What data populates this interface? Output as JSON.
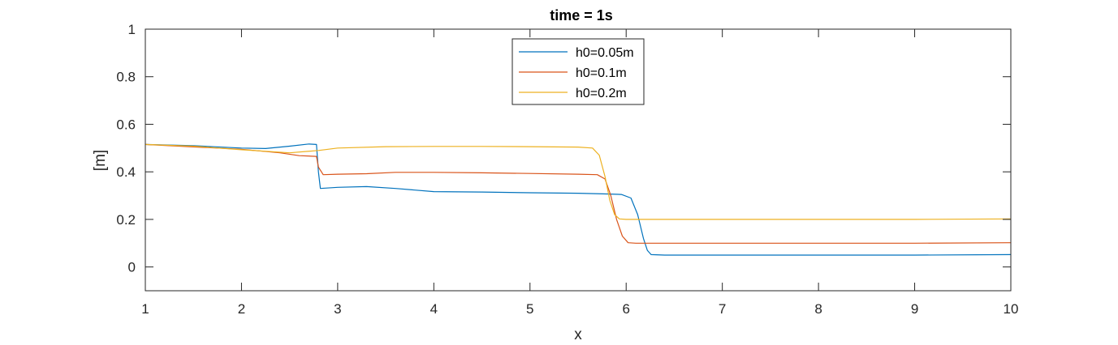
{
  "chart_data": {
    "type": "line",
    "title": "time = 1s",
    "xlabel": "x",
    "ylabel": "[m]",
    "xlim": [
      1,
      10
    ],
    "ylim": [
      -0.1,
      1
    ],
    "xticks": [
      1,
      2,
      3,
      4,
      5,
      6,
      7,
      8,
      9,
      10
    ],
    "yticks": [
      0,
      0.2,
      0.4,
      0.6,
      0.8,
      1
    ],
    "xtick_labels": [
      "1",
      "2",
      "3",
      "4",
      "5",
      "6",
      "7",
      "8",
      "9",
      "10"
    ],
    "ytick_labels": [
      "0",
      "0.2",
      "0.4",
      "0.6",
      "0.8",
      "1"
    ],
    "grid": false,
    "legend_position": "top-center",
    "series": [
      {
        "name": "h0=0.05m",
        "color": "#0072BD",
        "x": [
          1.0,
          1.5,
          2.0,
          2.25,
          2.5,
          2.7,
          2.78,
          2.8,
          2.82,
          3.0,
          3.3,
          3.6,
          4.0,
          4.5,
          5.0,
          5.5,
          5.8,
          5.95,
          6.05,
          6.12,
          6.18,
          6.22,
          6.26,
          6.4,
          7.0,
          8.0,
          9.0,
          10.0
        ],
        "y": [
          0.515,
          0.51,
          0.5,
          0.498,
          0.508,
          0.517,
          0.515,
          0.4,
          0.33,
          0.335,
          0.338,
          0.33,
          0.317,
          0.315,
          0.312,
          0.31,
          0.307,
          0.305,
          0.29,
          0.22,
          0.12,
          0.07,
          0.052,
          0.05,
          0.05,
          0.05,
          0.05,
          0.052
        ]
      },
      {
        "name": "h0=0.1m",
        "color": "#D95319",
        "x": [
          1.0,
          1.5,
          2.0,
          2.4,
          2.6,
          2.78,
          2.8,
          2.85,
          3.0,
          3.3,
          3.6,
          4.0,
          4.5,
          5.0,
          5.5,
          5.7,
          5.78,
          5.84,
          5.9,
          5.96,
          6.02,
          6.1,
          6.5,
          7.0,
          8.0,
          9.0,
          10.0
        ],
        "y": [
          0.515,
          0.505,
          0.495,
          0.48,
          0.468,
          0.465,
          0.42,
          0.388,
          0.39,
          0.392,
          0.398,
          0.398,
          0.396,
          0.393,
          0.39,
          0.388,
          0.37,
          0.3,
          0.2,
          0.13,
          0.102,
          0.1,
          0.1,
          0.1,
          0.1,
          0.1,
          0.102
        ]
      },
      {
        "name": "h0=0.2m",
        "color": "#EDB120",
        "x": [
          1.0,
          1.5,
          2.0,
          2.5,
          2.8,
          3.0,
          3.5,
          4.0,
          4.5,
          5.0,
          5.5,
          5.65,
          5.72,
          5.78,
          5.83,
          5.88,
          5.93,
          6.0,
          6.5,
          7.0,
          8.0,
          9.0,
          10.0
        ],
        "y": [
          0.515,
          0.508,
          0.493,
          0.48,
          0.49,
          0.5,
          0.506,
          0.507,
          0.507,
          0.506,
          0.504,
          0.5,
          0.47,
          0.38,
          0.28,
          0.22,
          0.202,
          0.2,
          0.2,
          0.2,
          0.2,
          0.2,
          0.202
        ]
      }
    ]
  }
}
